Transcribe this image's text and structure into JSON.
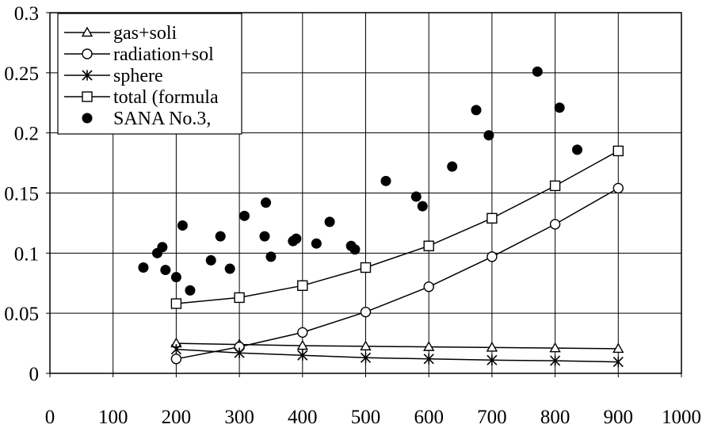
{
  "chart_data": {
    "type": "scatter",
    "title": "",
    "xlabel": "",
    "ylabel": "",
    "xlim": [
      0,
      1000
    ],
    "ylim": [
      0,
      0.3
    ],
    "grid": true,
    "legend_position": "top-left",
    "x_ticks": [
      "0",
      "100",
      "200",
      "300",
      "400",
      "500",
      "600",
      "700",
      "800",
      "900",
      "1000"
    ],
    "y_ticks": [
      "0",
      "0.05",
      "0.1",
      "0.15",
      "0.2",
      "0.25",
      "0.3"
    ],
    "series": [
      {
        "name": "gas+soli",
        "kind": "line",
        "marker": "triangle",
        "x": [
          200,
          300,
          400,
          500,
          600,
          700,
          800,
          900
        ],
        "y": [
          0.025,
          0.024,
          0.023,
          0.0225,
          0.022,
          0.0215,
          0.021,
          0.0205
        ]
      },
      {
        "name": "radiation+sol",
        "kind": "line",
        "marker": "circle",
        "x": [
          200,
          300,
          400,
          500,
          600,
          700,
          800,
          900
        ],
        "y": [
          0.012,
          0.022,
          0.034,
          0.051,
          0.072,
          0.097,
          0.124,
          0.154
        ]
      },
      {
        "name": "sphere",
        "kind": "line",
        "marker": "asterisk",
        "x": [
          200,
          300,
          400,
          500,
          600,
          700,
          800,
          900
        ],
        "y": [
          0.02,
          0.017,
          0.015,
          0.013,
          0.012,
          0.011,
          0.0105,
          0.0095
        ]
      },
      {
        "name": "total (formula",
        "kind": "line",
        "marker": "square",
        "x": [
          200,
          300,
          400,
          500,
          600,
          700,
          800,
          900
        ],
        "y": [
          0.058,
          0.063,
          0.073,
          0.088,
          0.106,
          0.129,
          0.156,
          0.185
        ]
      },
      {
        "name": "SANA No.3,",
        "kind": "scatter",
        "marker": "filled-circle",
        "x": [
          148,
          170,
          178,
          183,
          200,
          210,
          222,
          255,
          270,
          285,
          308,
          340,
          342,
          350,
          385,
          390,
          422,
          443,
          477,
          483,
          532,
          580,
          590,
          637,
          675,
          695,
          772,
          807,
          835
        ],
        "y": [
          0.088,
          0.1,
          0.105,
          0.086,
          0.08,
          0.123,
          0.069,
          0.094,
          0.114,
          0.087,
          0.131,
          0.114,
          0.142,
          0.097,
          0.11,
          0.112,
          0.108,
          0.126,
          0.106,
          0.103,
          0.16,
          0.147,
          0.139,
          0.172,
          0.219,
          0.198,
          0.251,
          0.221,
          0.186
        ]
      }
    ]
  }
}
